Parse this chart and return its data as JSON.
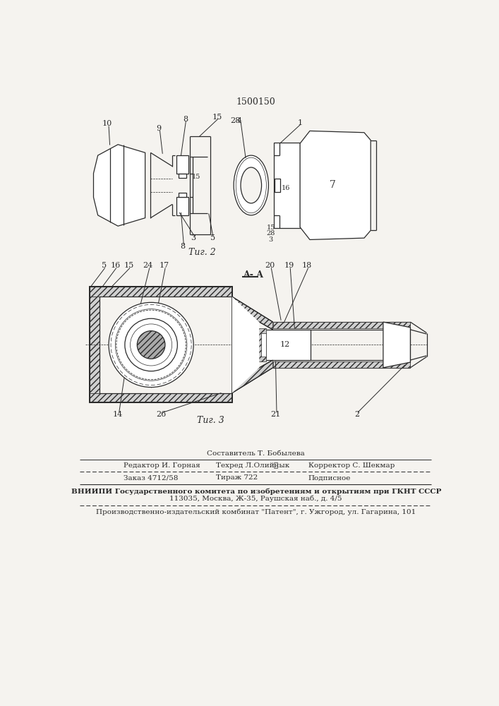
{
  "patent_number": "1500150",
  "bg_color": "#f5f3ef",
  "line_color": "#2a2a2a",
  "fig2_caption": "Τиг. 2",
  "fig3_caption": "Τиг. 3",
  "section_label": "A- A",
  "footer": {
    "sestavitel": "Составитель Т. Бобылева",
    "redaktor": "Редактор И. Горная",
    "tehred": "Техред Л.Олийнык",
    "korrektor": "Корректор С. Шекмар",
    "zakaz": "Заказ 4712/58",
    "tirazh": "Тираж 722",
    "podpisnoe": "Подписное",
    "vniipi": "ВНИИПИ Государственного комитета по изобретениям и открытиям при ГКНТ СССР",
    "address": "113035, Москва, Ж-35, Раушская наб., д. 4/5",
    "patent_plant": "Производственно-издательский комбинат \"Патент\", г. Ужгород, ул. Гагарина, 101"
  }
}
